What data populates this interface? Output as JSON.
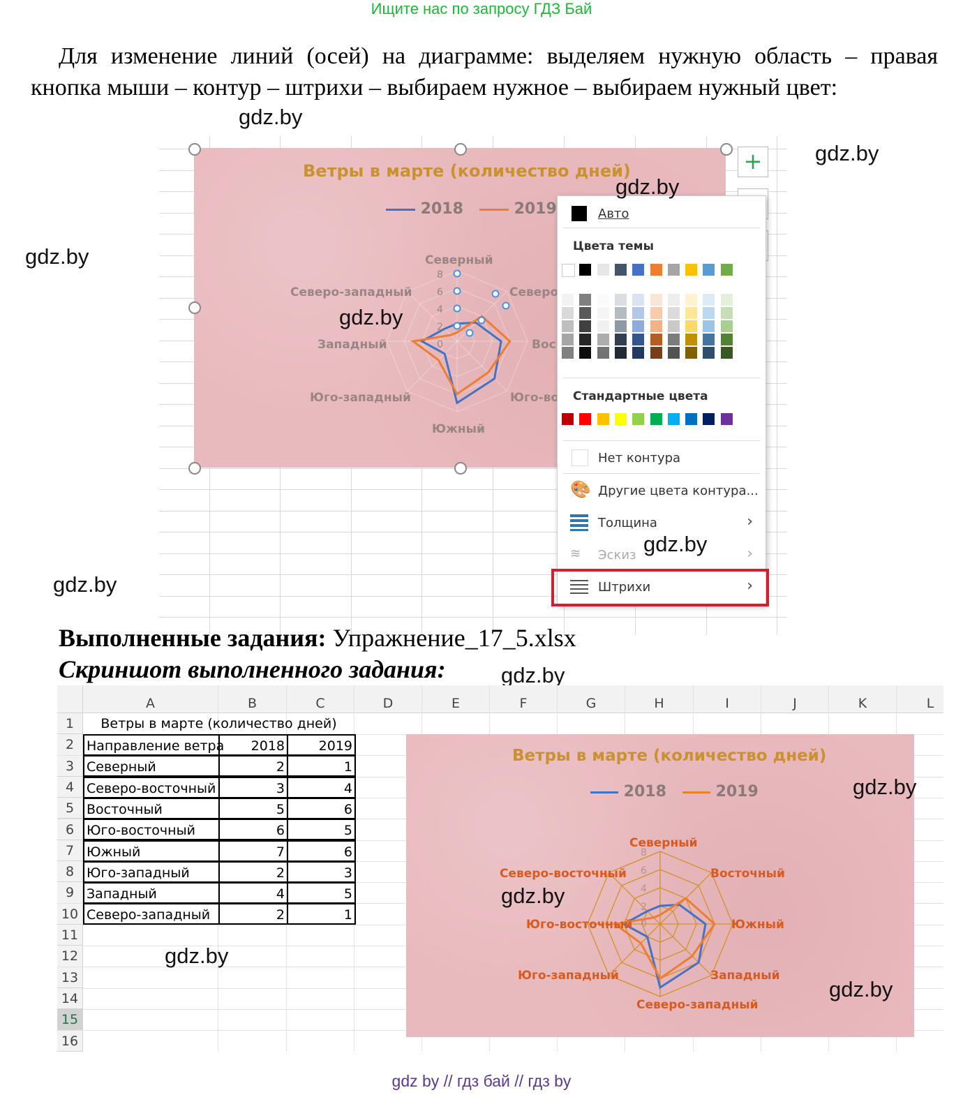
{
  "banner": "Ищите нас по запросу ГДЗ Бай",
  "intro": "Для изменение линий (осей) на диаграмме: выделяем нужную область – правая кнопка мыши – контур – штрихи – выбираем нужное – выбираем нужный цвет:",
  "watermark": "gdz.by",
  "colors": {
    "accent_green": "#1fb53a",
    "chart_bg": "#e8b9bd",
    "chart_title": "#c9912f",
    "series_2018": "#4472c4",
    "series_2019": "#ed7d31",
    "menu_highlight": "#d02030"
  },
  "chart_data": [
    {
      "type": "radar",
      "title": "Ветры в марте (количество дней)",
      "categories": [
        "Северный",
        "Северо-восточный",
        "Восточный",
        "Юго-восточный",
        "Южный",
        "Юго-западный",
        "Западный",
        "Северо-западный"
      ],
      "visible_category_labels": [
        "Северный",
        "Северо-западный",
        "Северо",
        "Западный",
        "Вос",
        "Юго-западный",
        "Юго-во",
        "Южный"
      ],
      "series": [
        {
          "name": "2018",
          "values": [
            2,
            3,
            5,
            6,
            7,
            2,
            4,
            2
          ]
        },
        {
          "name": "2019",
          "values": [
            1,
            4,
            6,
            5,
            6,
            3,
            5,
            1
          ]
        }
      ],
      "ticks": [
        "0",
        "2",
        "4",
        "6",
        "8"
      ],
      "ylim": [
        0,
        8
      ],
      "legend": "top"
    },
    {
      "type": "radar",
      "title": "Ветры в марте (количество дней)",
      "categories": [
        "Северный",
        "Северо-восточный",
        "Восточный",
        "Юго-восточный",
        "Южный",
        "Юго-западный",
        "Западный",
        "Северо-западный"
      ],
      "series": [
        {
          "name": "2018",
          "values": [
            2,
            3,
            5,
            6,
            7,
            2,
            4,
            2
          ]
        },
        {
          "name": "2019",
          "values": [
            1,
            4,
            6,
            5,
            6,
            3,
            5,
            1
          ]
        }
      ],
      "ticks": [
        "0",
        "2",
        "4",
        "6",
        "8"
      ],
      "ylim": [
        0,
        8
      ],
      "legend": "top"
    }
  ],
  "menu": {
    "auto": "Авто",
    "theme_colors": "Цвета темы",
    "standard_colors": "Стандартные цвета",
    "no_outline": "Нет контура",
    "more_colors": "Другие цвета контура...",
    "weight": "Толщина",
    "sketch": "Эскиз",
    "dashes": "Штрихи",
    "theme_top": [
      "#ffffff",
      "#000000",
      "#e7e6e6",
      "#44546a",
      "#4472c4",
      "#ed7d31",
      "#a5a5a5",
      "#ffc000",
      "#5b9bd5",
      "#70ad47"
    ],
    "standard": [
      "#c00000",
      "#ff0000",
      "#ffc000",
      "#ffff00",
      "#92d050",
      "#00b050",
      "#00b0f0",
      "#0070c0",
      "#002060",
      "#7030a0"
    ]
  },
  "done": {
    "label": "Выполненные задания:",
    "file": "Упражнение_17_5.xlsx"
  },
  "screenshot_label": "Скриншот выполненного задания:",
  "sheet": {
    "columns": [
      "A",
      "B",
      "C",
      "D",
      "E",
      "F",
      "G",
      "H",
      "I",
      "J",
      "K",
      "L"
    ],
    "rows": [
      "1",
      "2",
      "3",
      "4",
      "5",
      "6",
      "7",
      "8",
      "9",
      "10",
      "11",
      "12",
      "13",
      "14",
      "15",
      "16"
    ],
    "a1": "Ветры в марте (количество дней)",
    "header": [
      "Направление ветра",
      "2018",
      "2019"
    ],
    "data": [
      [
        "Северный",
        "2",
        "1"
      ],
      [
        "Северо-восточный",
        "3",
        "4"
      ],
      [
        "Восточный",
        "5",
        "6"
      ],
      [
        "Юго-восточный",
        "6",
        "5"
      ],
      [
        "Южный",
        "7",
        "6"
      ],
      [
        "Юго-западный",
        "2",
        "3"
      ],
      [
        "Западный",
        "4",
        "5"
      ],
      [
        "Северо-западный",
        "2",
        "1"
      ]
    ]
  },
  "footer": "gdz by  //  гдз бай  //  гдз by"
}
